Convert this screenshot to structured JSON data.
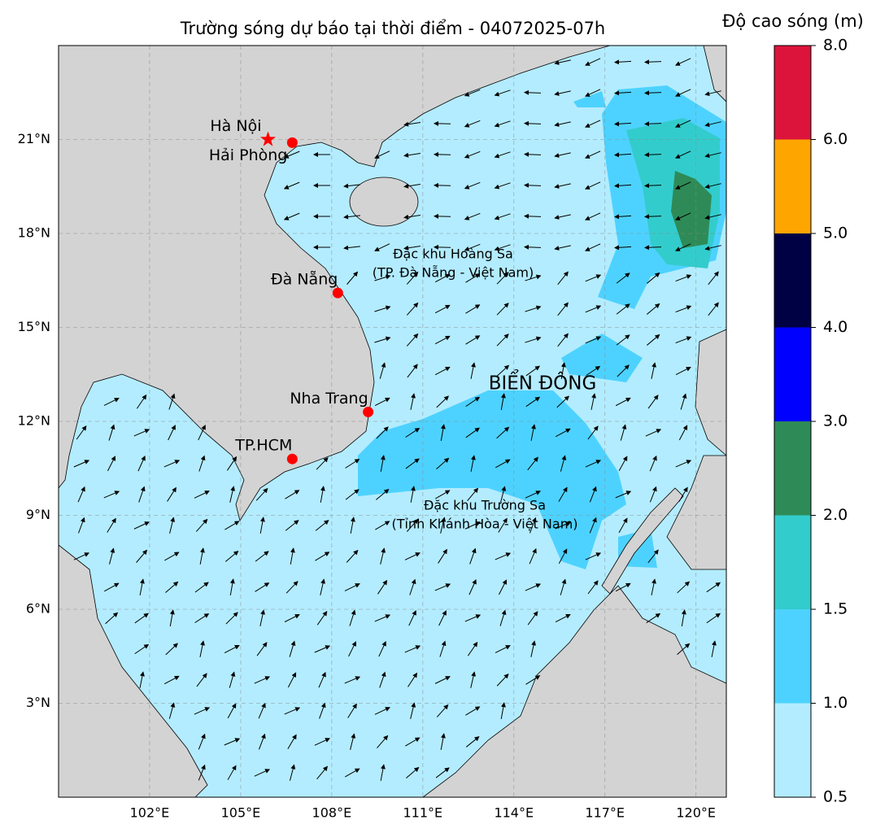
{
  "title": "Trường sóng dự báo tại thời điểm - 04072025-07h",
  "xlim": [
    99,
    121
  ],
  "ylim": [
    0,
    24
  ],
  "lon_ticks": [
    {
      "value": 102,
      "label": "102°E"
    },
    {
      "value": 105,
      "label": "105°E"
    },
    {
      "value": 108,
      "label": "108°E"
    },
    {
      "value": 111,
      "label": "111°E"
    },
    {
      "value": 114,
      "label": "114°E"
    },
    {
      "value": 117,
      "label": "117°E"
    },
    {
      "value": 120,
      "label": "120°E"
    }
  ],
  "lat_ticks": [
    {
      "value": 3,
      "label": "3°N"
    },
    {
      "value": 6,
      "label": "6°N"
    },
    {
      "value": 9,
      "label": "9°N"
    },
    {
      "value": 12,
      "label": "12°N"
    },
    {
      "value": 15,
      "label": "15°N"
    },
    {
      "value": 18,
      "label": "18°N"
    },
    {
      "value": 21,
      "label": "21°N"
    }
  ],
  "cities": [
    {
      "name": "Hà Nội",
      "lon": 105.9,
      "lat": 21.0,
      "marker": "star"
    },
    {
      "name": "Hải Phòng",
      "lon": 106.7,
      "lat": 20.9,
      "marker": "dot"
    },
    {
      "name": "Đà Nẵng",
      "lon": 108.2,
      "lat": 16.1,
      "marker": "dot"
    },
    {
      "name": "Nha Trang",
      "lon": 109.2,
      "lat": 12.3,
      "marker": "dot"
    },
    {
      "name": "TP.HCM",
      "lon": 106.7,
      "lat": 10.8,
      "marker": "dot"
    }
  ],
  "regions": [
    {
      "lines": [
        "Đặc khu Hoàng Sa",
        "(TP. Đà Nẵng - Việt Nam)"
      ]
    },
    {
      "lines": [
        "BIỂN ĐÔNG"
      ]
    },
    {
      "lines": [
        "Đặc khu Trường Sa",
        "(Tỉnh Khánh Hòa - Việt Nam)"
      ]
    }
  ],
  "colorbar": {
    "label": "Độ cao sóng (m)",
    "ticks": [
      0.5,
      {
        "value": 1,
        "label": "1.0"
      },
      1.5,
      {
        "value": 2,
        "label": "2.0"
      },
      {
        "value": 3,
        "label": "3.0"
      },
      {
        "value": 4,
        "label": "4.0"
      },
      {
        "value": 5,
        "label": "5.0"
      },
      {
        "value": 6,
        "label": "6.0"
      },
      {
        "value": 8,
        "label": "8.0"
      }
    ],
    "colors": [
      "#b3ecff",
      "#4dd2ff",
      "#33cccc",
      "#2e8b57",
      "#0000ff",
      "#000044",
      "#ffa500",
      "#dc143c"
    ]
  }
}
